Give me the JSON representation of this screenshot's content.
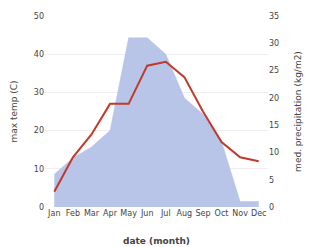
{
  "chart_data": {
    "type": "line",
    "xlabel": "date (month)",
    "ylabel": "max temp (C)",
    "y2label": "med. precipitation (kg/m2)",
    "categories": [
      "Jan",
      "Feb",
      "Mar",
      "Apr",
      "May",
      "Jun",
      "Jul",
      "Aug",
      "Sep",
      "Oct",
      "Nov",
      "Dec"
    ],
    "series": [
      {
        "type": "area",
        "axis": "y2",
        "color": "#b8c4e8",
        "values": [
          6,
          9,
          11,
          14,
          31,
          31,
          28,
          20,
          17,
          12,
          1,
          1
        ]
      },
      {
        "type": "line",
        "color": "#c0392b",
        "values": [
          4,
          13,
          19,
          27,
          27,
          37,
          38,
          34,
          25,
          17,
          13,
          12
        ]
      }
    ],
    "ylim": [
      0,
      50
    ],
    "yticks": [
      0,
      10,
      20,
      30,
      40,
      50
    ],
    "y2lim": [
      0,
      35
    ],
    "y2ticks": [
      0,
      5,
      10,
      15,
      20,
      25,
      30,
      35
    ],
    "grid": true
  }
}
